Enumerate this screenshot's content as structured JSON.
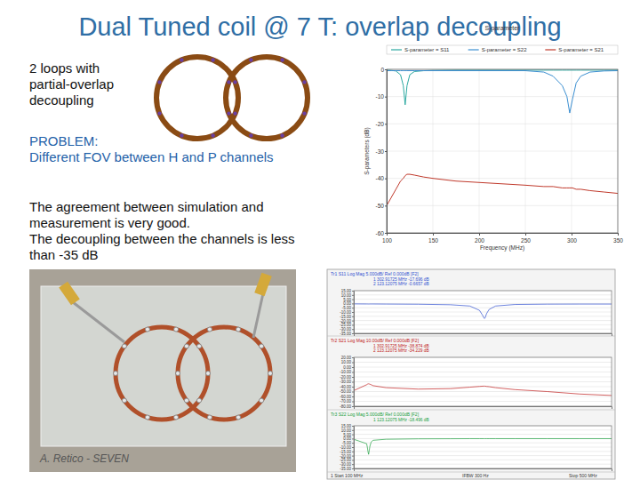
{
  "title": "Dual Tuned coil @ 7 T: overlap decoupling",
  "description": [
    "2 loops with",
    "partial-overlap",
    "decoupling"
  ],
  "problem": [
    "PROBLEM:",
    "Different FOV between H and P channels"
  ],
  "conclusion": [
    "The agreement between simulation and",
    "measurement is very good.",
    "The decoupling between the channels is less",
    "than -35 dB"
  ],
  "credit": "A. Retico - SEVEN",
  "analyzer_footer": [
    "1  Start 100 MHz",
    "IFBW 300 Hz",
    "Stop 500 MHz"
  ],
  "chart_data": [
    {
      "type": "line",
      "title": "S-parameter",
      "x_label": "Frequency (MHz)",
      "y_label": "S-parameters (dB)",
      "x": [
        100,
        105,
        110,
        115,
        118,
        120,
        122,
        125,
        130,
        140,
        150,
        175,
        200,
        225,
        250,
        270,
        280,
        290,
        295,
        298,
        301,
        305,
        310,
        320,
        335,
        350
      ],
      "series": [
        {
          "name": "S-parameter = S11",
          "color": "#2aa8a0",
          "values": [
            -0.3,
            -0.4,
            -0.6,
            -2,
            -6,
            -13,
            -6,
            -2,
            -0.8,
            -0.5,
            -0.4,
            -0.3,
            -0.3,
            -0.3,
            -0.3,
            -0.3,
            -0.3,
            -0.3,
            -0.3,
            -0.3,
            -0.3,
            -0.3,
            -0.3,
            -0.3,
            -0.3,
            -0.3
          ]
        },
        {
          "name": "S-parameter = S22",
          "color": "#3b8fd1",
          "values": [
            -0.5,
            -0.5,
            -0.5,
            -0.5,
            -0.5,
            -0.5,
            -0.5,
            -0.5,
            -0.5,
            -0.5,
            -0.5,
            -0.5,
            -0.5,
            -0.5,
            -0.5,
            -1,
            -2.5,
            -6,
            -10,
            -16,
            -11,
            -5,
            -2.5,
            -1,
            -0.6,
            -0.5
          ]
        },
        {
          "name": "S-parameter = S21",
          "color": "#c0392b",
          "values": [
            -50,
            -47,
            -44,
            -41,
            -40,
            -39,
            -38.5,
            -38.5,
            -38.8,
            -39.5,
            -40,
            -41,
            -41.5,
            -42,
            -42.5,
            -43,
            -43,
            -43.5,
            -43.5,
            -43.5,
            -43.5,
            -44,
            -44,
            -44.5,
            -45,
            -45.5
          ]
        }
      ],
      "xlim": [
        100,
        350
      ],
      "xticks": [
        100,
        150,
        200,
        250,
        300,
        350
      ],
      "ylim": [
        -60,
        0
      ],
      "yticks": [
        0,
        -10,
        -20,
        -30,
        -40,
        -50,
        -60
      ],
      "grid": true,
      "legend": "top"
    },
    {
      "type": "line",
      "title": "Tr1 S11 Log Mag 5.000dB/ Ref 0.000dB [F2]",
      "annotations": [
        "1  302.91725 MHz  -17.696 dB",
        "2  123.12075 MHz  -0.6657 dB"
      ],
      "x": [
        100,
        120,
        121,
        122,
        123,
        124,
        125,
        127,
        130,
        150,
        200,
        250,
        280,
        295,
        300,
        302,
        303,
        304,
        306,
        310,
        320,
        350,
        400,
        450,
        500
      ],
      "values": [
        -0.5,
        -0.6,
        -0.6,
        -0.65,
        -0.67,
        -0.65,
        -0.6,
        -0.6,
        -0.6,
        -0.7,
        -0.9,
        -1.5,
        -3,
        -8,
        -14,
        -17,
        -17.7,
        -16.5,
        -12,
        -7,
        -3,
        -1.2,
        -0.8,
        -0.7,
        -0.7
      ],
      "color": "#3050d0",
      "xlim": [
        100,
        500
      ],
      "ylim": [
        -35,
        15
      ],
      "yticks": [
        {
          "value": 15,
          "label": "15.00"
        },
        {
          "value": 10,
          "label": "10.00"
        },
        {
          "value": 5,
          "label": "5.00"
        },
        {
          "value": 0,
          "label": "0.00"
        },
        {
          "value": -5,
          "label": "-5.00"
        },
        {
          "value": -10,
          "label": "-10.00"
        },
        {
          "value": -15,
          "label": "-15.00"
        },
        {
          "value": -20,
          "label": "-20.00"
        },
        {
          "value": -25,
          "label": "-25.00"
        },
        {
          "value": -30,
          "label": "-30.00"
        },
        {
          "value": -35,
          "label": "-35.00"
        }
      ],
      "grid": true,
      "tick_labels": "y"
    },
    {
      "type": "line",
      "title": "Tr2 S21 Log Mag 10.00dB/ Ref 0.000dB [F2]",
      "annotations": [
        "1  302.91725 MHz  -38.874 dB",
        "2  123.12075 MHz  -34.229 dB"
      ],
      "x": [
        100,
        120,
        121,
        122,
        123,
        124,
        125,
        127,
        130,
        150,
        200,
        250,
        280,
        295,
        300,
        302,
        303,
        304,
        306,
        310,
        320,
        350,
        400,
        450,
        500
      ],
      "values": [
        -48,
        -36,
        -35,
        -34.5,
        -34.2,
        -34.5,
        -35,
        -36,
        -38,
        -42,
        -45,
        -44,
        -41,
        -39.5,
        -39,
        -38.9,
        -38.9,
        -39,
        -39.5,
        -40,
        -42,
        -46,
        -50,
        -55,
        -58
      ],
      "color": "#c02020",
      "xlim": [
        100,
        500
      ],
      "ylim": [
        -80,
        20
      ],
      "yticks": [
        {
          "value": 20,
          "label": "20.00"
        },
        {
          "value": 10,
          "label": "10.00"
        },
        {
          "value": 0,
          "label": "0.00"
        },
        {
          "value": -10,
          "label": "-10.00"
        },
        {
          "value": -20,
          "label": "-20.00"
        },
        {
          "value": -30,
          "label": "-30.00"
        },
        {
          "value": -40,
          "label": "-40.00"
        },
        {
          "value": -50,
          "label": "-50.00"
        },
        {
          "value": -60,
          "label": "-60.00"
        },
        {
          "value": -70,
          "label": "-70.00"
        },
        {
          "value": -80,
          "label": "-80.00"
        }
      ],
      "grid": true,
      "tick_labels": "y"
    },
    {
      "type": "line",
      "title": "Tr3 S22 Log Mag 5.000dB/ Ref 0.000dB [F2]",
      "annotations": [
        "1  123.12075 MHz  -18.496 dB"
      ],
      "x": [
        100,
        120,
        121,
        122,
        123,
        124,
        125,
        127,
        130,
        150,
        200,
        250,
        280,
        295,
        300,
        302,
        303,
        304,
        306,
        310,
        320,
        350,
        400,
        450,
        500
      ],
      "values": [
        -0.8,
        -6,
        -10,
        -15,
        -18.5,
        -14,
        -9,
        -4,
        -2,
        -0.8,
        -0.3,
        -0.2,
        -0.1,
        -0.1,
        -0.1,
        -0.1,
        -0.1,
        -0.1,
        -0.1,
        -0.1,
        -0.1,
        -0.1,
        -0.1,
        -0.1,
        -0.1
      ],
      "color": "#20a040",
      "xlim": [
        100,
        500
      ],
      "ylim": [
        -35,
        15
      ],
      "yticks": [
        {
          "value": 15,
          "label": "15.00"
        },
        {
          "value": 10,
          "label": "10.00"
        },
        {
          "value": 5,
          "label": "5.00"
        },
        {
          "value": 0,
          "label": "0.00"
        },
        {
          "value": -5,
          "label": "-5.00"
        },
        {
          "value": -10,
          "label": "-10.00"
        },
        {
          "value": -15,
          "label": "-15.00"
        },
        {
          "value": -20,
          "label": "-20.00"
        },
        {
          "value": -25,
          "label": "-25.00"
        },
        {
          "value": -30,
          "label": "-30.00"
        },
        {
          "value": -35,
          "label": "-35.00"
        }
      ],
      "grid": true,
      "tick_labels": "y"
    }
  ]
}
